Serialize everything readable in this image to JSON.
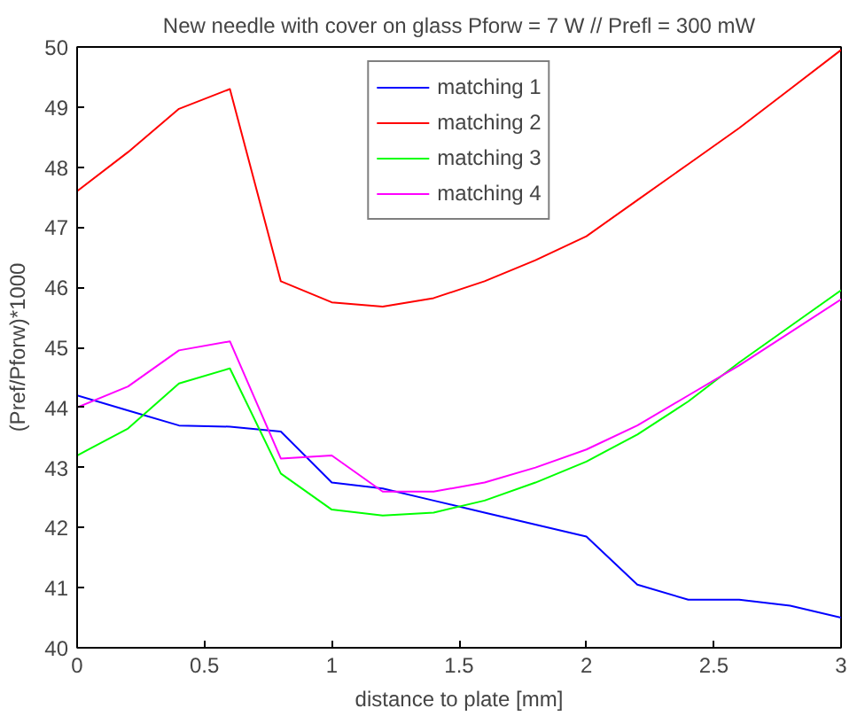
{
  "chart_data": {
    "type": "line",
    "title": "New needle with cover on glass Pforw = 7 W // Prefl = 300 mW",
    "xlabel": "distance to plate [mm]",
    "ylabel": "(Pref/Pforw)*1000",
    "x": [
      0,
      0.2,
      0.4,
      0.6,
      0.8,
      1.0,
      1.2,
      1.4,
      1.6,
      1.8,
      2.0,
      2.2,
      2.4,
      2.6,
      2.8,
      3.0
    ],
    "series": [
      {
        "name": "matching 1",
        "color": "#0000ff",
        "values": [
          44.2,
          43.95,
          43.7,
          43.68,
          43.6,
          42.75,
          42.65,
          42.45,
          42.25,
          42.05,
          41.85,
          41.05,
          40.8,
          40.8,
          40.7,
          40.5
        ]
      },
      {
        "name": "matching 2",
        "color": "#ff0000",
        "values": [
          47.6,
          48.25,
          48.97,
          49.3,
          46.1,
          45.75,
          45.68,
          45.82,
          46.1,
          46.45,
          46.85,
          47.45,
          48.05,
          48.65,
          49.3,
          49.95
        ]
      },
      {
        "name": "matching 3",
        "color": "#00ff00",
        "values": [
          43.2,
          43.65,
          44.4,
          44.65,
          42.9,
          42.3,
          42.2,
          42.25,
          42.45,
          42.75,
          43.1,
          43.55,
          44.1,
          44.75,
          45.35,
          45.95
        ]
      },
      {
        "name": "matching 4",
        "color": "#ff00ff",
        "values": [
          44.0,
          44.35,
          44.95,
          45.1,
          43.15,
          43.2,
          42.6,
          42.6,
          42.75,
          43.0,
          43.3,
          43.7,
          44.2,
          44.7,
          45.25,
          45.8
        ]
      }
    ],
    "xlim": [
      0,
      3
    ],
    "ylim": [
      40,
      50
    ],
    "xticks": [
      0,
      0.5,
      1,
      1.5,
      2,
      2.5,
      3
    ],
    "yticks": [
      40,
      41,
      42,
      43,
      44,
      45,
      46,
      47,
      48,
      49,
      50
    ],
    "legend": "top",
    "grid": false,
    "marker": "none",
    "line_style": "solid"
  }
}
